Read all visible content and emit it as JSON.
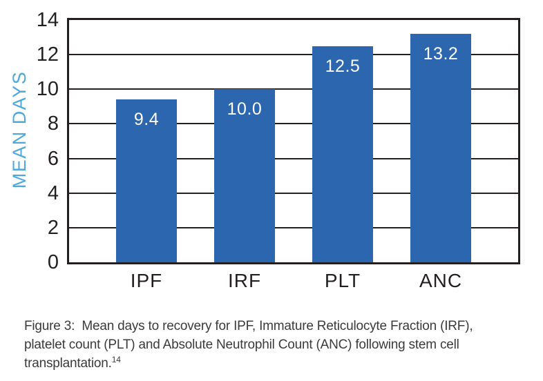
{
  "chart_data": {
    "type": "bar",
    "categories": [
      "IPF",
      "IRF",
      "PLT",
      "ANC"
    ],
    "values": [
      9.4,
      10.0,
      12.5,
      13.2
    ],
    "value_labels": [
      "9.4",
      "10.0",
      "12.5",
      "13.2"
    ],
    "title": "",
    "xlabel": "",
    "ylabel": "MEAN DAYS",
    "ylim": [
      0,
      14
    ],
    "yticks": [
      0,
      2,
      4,
      6,
      8,
      10,
      12,
      14
    ],
    "grid": true,
    "legend": "none",
    "colors": {
      "bar": "#2B66AF",
      "ylabel_text": "#4FA8DC",
      "axis_and_ticks": "#231F20",
      "value_label_text": "#FFFFFF",
      "caption_text": "#3A3A3A",
      "background": "#FFFFFF"
    }
  },
  "caption": {
    "line1": "Figure 3:  Mean days to recovery for IPF, Immature Reticulocyte Fraction (IRF),",
    "line2": "platelet count (PLT) and Absolute Neutrophil Count (ANC) following stem cell",
    "line3": "transplantation.",
    "footnote_marker": "14"
  }
}
